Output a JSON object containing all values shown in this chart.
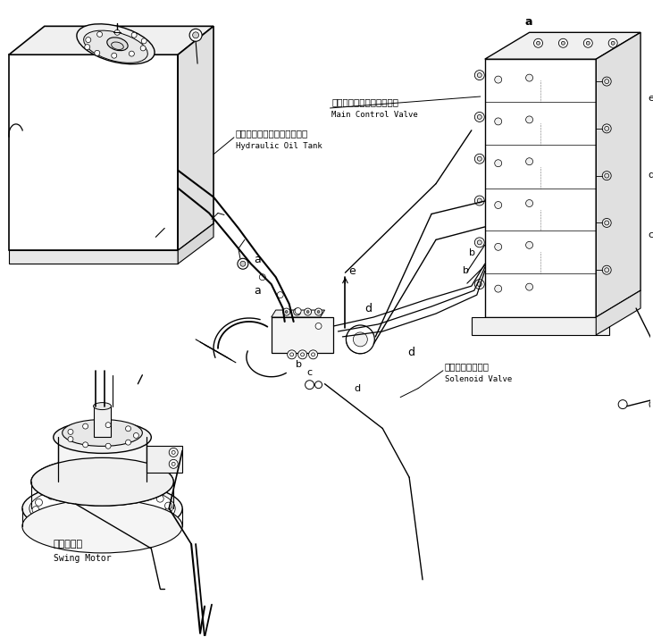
{
  "bg_color": "#ffffff",
  "line_color": "#000000",
  "labels": {
    "main_control_valve_jp": "メインコントロールバルブ",
    "main_control_valve_en": "Main Control Valve",
    "hydraulic_tank_jp": "ハイドロリックオイルタンク",
    "hydraulic_tank_en": "Hydraulic Oil Tank",
    "swing_motor_jp": "旋回モータ",
    "swing_motor_en": "Swing Motor",
    "solenoid_valve_jp": "ソレノイドバルブ",
    "solenoid_valve_en": "Solenoid Valve"
  }
}
